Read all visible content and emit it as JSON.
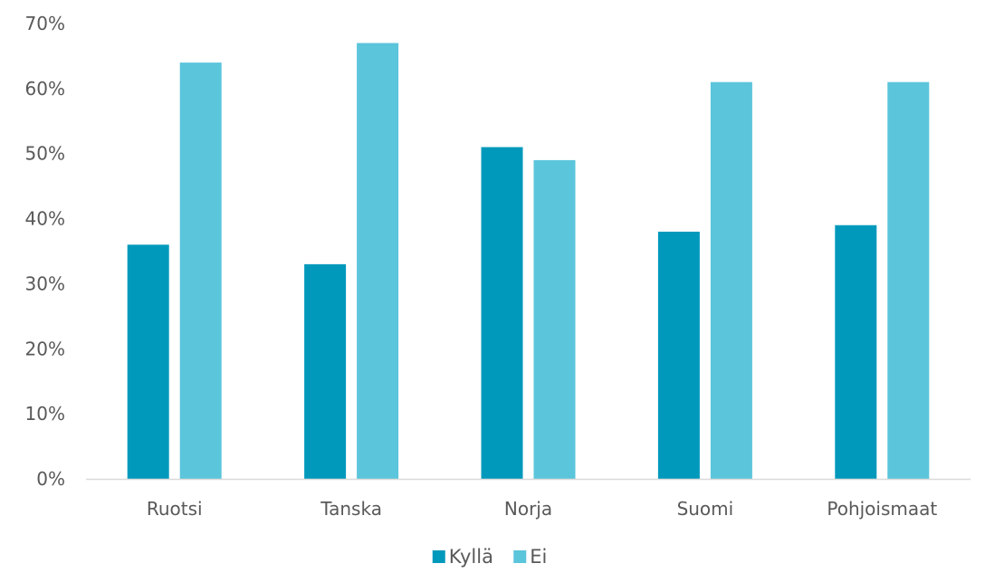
{
  "chart_data": {
    "type": "bar",
    "title": "",
    "xlabel": "",
    "ylabel": "",
    "categories": [
      "Ruotsi",
      "Tanska",
      "Norja",
      "Suomi",
      "Pohjoismaat"
    ],
    "series": [
      {
        "name": "Kyllä",
        "values": [
          36,
          33,
          51,
          38,
          39
        ],
        "color": "#0099BC"
      },
      {
        "name": "Ei",
        "values": [
          64,
          67,
          49,
          61,
          61
        ],
        "color": "#5BC5DB"
      }
    ],
    "ylim": [
      0,
      70
    ],
    "yticks": [
      0,
      10,
      20,
      30,
      40,
      50,
      60,
      70
    ],
    "ytick_labels": [
      "0%",
      "10%",
      "20%",
      "30%",
      "40%",
      "50%",
      "60%",
      "70%"
    ],
    "unit": "%",
    "grid": false,
    "legend_position": "bottom",
    "axis_line_color": "#D9D9D9",
    "text_color": "#595959"
  }
}
